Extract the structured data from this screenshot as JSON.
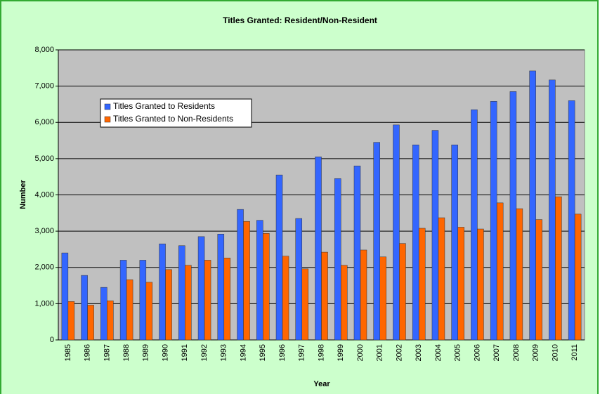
{
  "chart_data": {
    "type": "bar",
    "title": "Titles Granted:  Resident/Non-Resident",
    "x_label": "Year",
    "y_label": "Number",
    "categories": [
      "1985",
      "1986",
      "1987",
      "1988",
      "1989",
      "1990",
      "1991",
      "1992",
      "1993",
      "1994",
      "1995",
      "1996",
      "1997",
      "1998",
      "1999",
      "2000",
      "2001",
      "2002",
      "2003",
      "2004",
      "2005",
      "2006",
      "2007",
      "2008",
      "2009",
      "2010",
      "2011"
    ],
    "series": [
      {
        "name": "Titles Granted to Residents",
        "color": "#3366ff",
        "values": [
          2400,
          1780,
          1450,
          2200,
          2200,
          2650,
          2600,
          2850,
          2920,
          3600,
          3300,
          4550,
          3350,
          5050,
          4450,
          4800,
          5450,
          5930,
          5380,
          5780,
          5380,
          6350,
          6580,
          6850,
          7420,
          7170,
          6600
        ]
      },
      {
        "name": "Titles Granted to Non-Residents",
        "color": "#ff6600",
        "values": [
          1060,
          960,
          1080,
          1660,
          1590,
          1940,
          2060,
          2200,
          2260,
          3270,
          2940,
          2310,
          1960,
          2420,
          2060,
          2480,
          2290,
          2660,
          3080,
          3370,
          3110,
          3060,
          3780,
          3620,
          3320,
          3950,
          3470
        ]
      }
    ],
    "ylim": [
      0,
      8000
    ],
    "yticks": [
      0,
      {
        "value": 1000,
        "label": "1,000"
      },
      {
        "value": 2000,
        "label": "2,000"
      },
      {
        "value": 3000,
        "label": "3,000"
      },
      {
        "value": 4000,
        "label": "4,000"
      },
      {
        "value": 5000,
        "label": "5,000"
      },
      {
        "value": 6000,
        "label": "6,000"
      },
      {
        "value": 7000,
        "label": "7,000"
      },
      {
        "value": 8000,
        "label": "8,000"
      }
    ],
    "grid": true,
    "legend_position": "upper left"
  }
}
